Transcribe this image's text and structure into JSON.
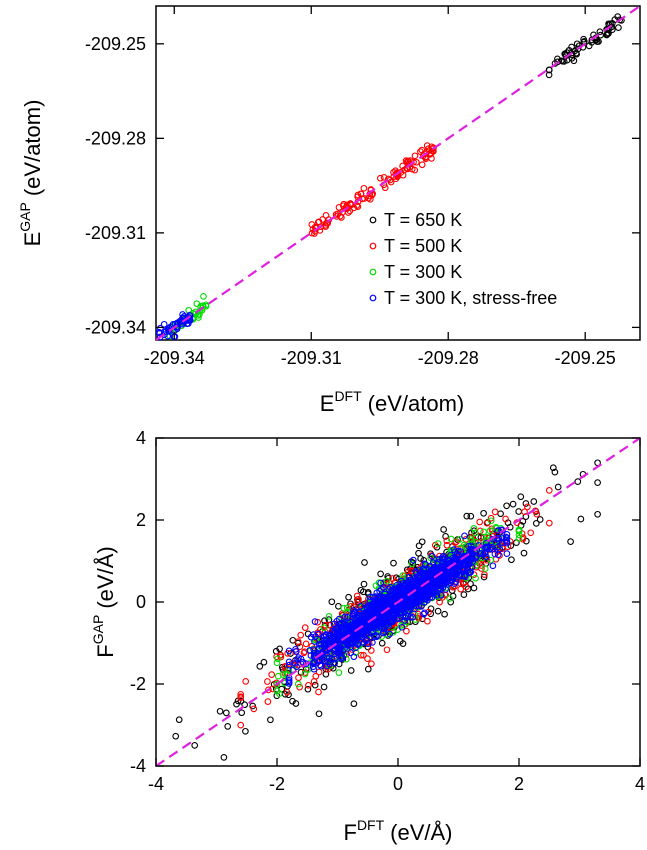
{
  "chart_data": [
    {
      "type": "scatter",
      "title": "",
      "xlabel": {
        "base": "E",
        "sup": "DFT",
        "unit": "(eV/atom)"
      },
      "ylabel": {
        "base": "E",
        "sup": "GAP",
        "unit": "(eV/atom)"
      },
      "xlim": [
        -209.344,
        -209.238
      ],
      "ylim": [
        -209.344,
        -209.238
      ],
      "xticks": [
        -209.34,
        -209.31,
        -209.28,
        -209.25
      ],
      "yticks": [
        -209.25,
        -209.28,
        -209.31,
        -209.34
      ],
      "xtick_labels": [
        "-209.34",
        "-209.31",
        "-209.28",
        "-209.25"
      ],
      "ytick_labels": [
        "-209.25",
        "-209.28",
        "-209.31",
        "-209.34"
      ],
      "grid": false,
      "legend_position": "lower-right",
      "reference_line": {
        "style": "dashed",
        "color": "#e020e0",
        "from": [
          -209.344,
          -209.344
        ],
        "to": [
          -209.238,
          -209.238
        ]
      },
      "series": [
        {
          "name": "T = 650 K",
          "color": "#000000",
          "x_range": [
            -209.258,
            -209.242
          ],
          "center": [
            -209.25,
            -209.25
          ],
          "approx_points": 60
        },
        {
          "name": "T = 500 K",
          "color": "#ff0000",
          "x_range": [
            -209.31,
            -209.283
          ],
          "center": [
            -209.297,
            -209.297
          ],
          "approx_points": 110
        },
        {
          "name": "T = 300 K",
          "color": "#00dd00",
          "x_range": [
            -209.341,
            -209.333
          ],
          "center": [
            -209.338,
            -209.338
          ],
          "approx_points": 40
        },
        {
          "name": "T = 300 K, stress-free",
          "color": "#0000ff",
          "x_range": [
            -209.344,
            -209.336
          ],
          "center": [
            -209.341,
            -209.341
          ],
          "approx_points": 50
        }
      ]
    },
    {
      "type": "scatter",
      "title": "",
      "xlabel": {
        "base": "F",
        "sup": "DFT",
        "unit": "(eV/Å)"
      },
      "ylabel": {
        "base": "F",
        "sup": "GAP",
        "unit": "(eV/Å)"
      },
      "xlim": [
        -4,
        4
      ],
      "ylim": [
        -4,
        4
      ],
      "xticks": [
        -4,
        -2,
        0,
        2,
        4
      ],
      "yticks": [
        -4,
        -2,
        0,
        2,
        4
      ],
      "xtick_labels": [
        "-4",
        "-2",
        "0",
        "2",
        "4"
      ],
      "ytick_labels": [
        "-4",
        "-2",
        "0",
        "2",
        "4"
      ],
      "grid": false,
      "reference_line": {
        "style": "dashed",
        "color": "#e020e0",
        "from": [
          -4,
          -4
        ],
        "to": [
          4,
          4
        ]
      },
      "series": [
        {
          "color": "#000000",
          "extent": [
            -3.8,
            3.3
          ],
          "spread": 0.45,
          "approx_points": 400
        },
        {
          "color": "#ff0000",
          "extent": [
            -2.6,
            2.5
          ],
          "spread": 0.35,
          "approx_points": 500
        },
        {
          "color": "#00dd00",
          "extent": [
            -2.0,
            2.0
          ],
          "spread": 0.28,
          "approx_points": 500
        },
        {
          "color": "#0000ff",
          "extent": [
            -1.8,
            1.8
          ],
          "spread": 0.22,
          "approx_points": 1400
        }
      ]
    }
  ]
}
